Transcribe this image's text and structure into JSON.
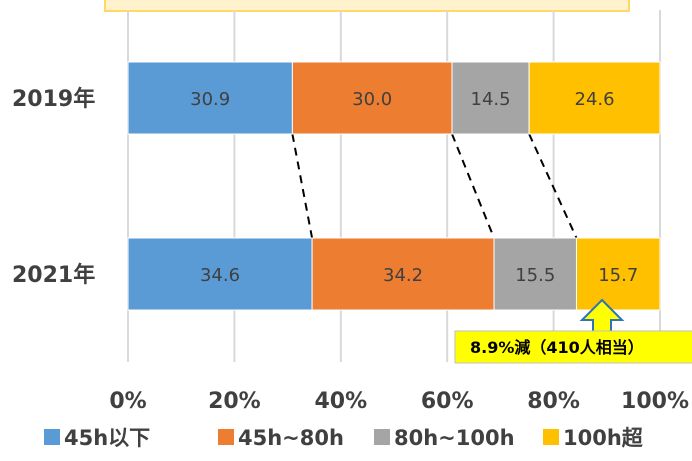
{
  "chart_data": {
    "type": "bar",
    "orientation": "horizontal",
    "stacked": "percent",
    "categories": [
      "2019年",
      "2021年"
    ],
    "series": [
      {
        "name": "45h以下",
        "values": [
          30.9,
          34.6
        ],
        "color": "#5b9bd5"
      },
      {
        "name": "45h~80h",
        "values": [
          30.0,
          34.2
        ],
        "color": "#ed7d31"
      },
      {
        "name": "80h~100h",
        "values": [
          14.5,
          15.5
        ],
        "color": "#a5a5a5"
      },
      {
        "name": "100h超",
        "values": [
          24.6,
          15.7
        ],
        "color": "#ffc000"
      }
    ],
    "xticks": [
      "0%",
      "20%",
      "40%",
      "60%",
      "80%",
      "100%"
    ],
    "xlim": [
      0,
      100
    ],
    "grid": "vertical",
    "legend": "bottom",
    "connector_lines": "dashed lines linking segment boundaries between years",
    "annotation": {
      "text": "8.9%減（410人相当）",
      "color": "#ffff00",
      "target_series": "100h超",
      "target_category": "2021年"
    },
    "title_banner_color": "#fff2cc"
  }
}
